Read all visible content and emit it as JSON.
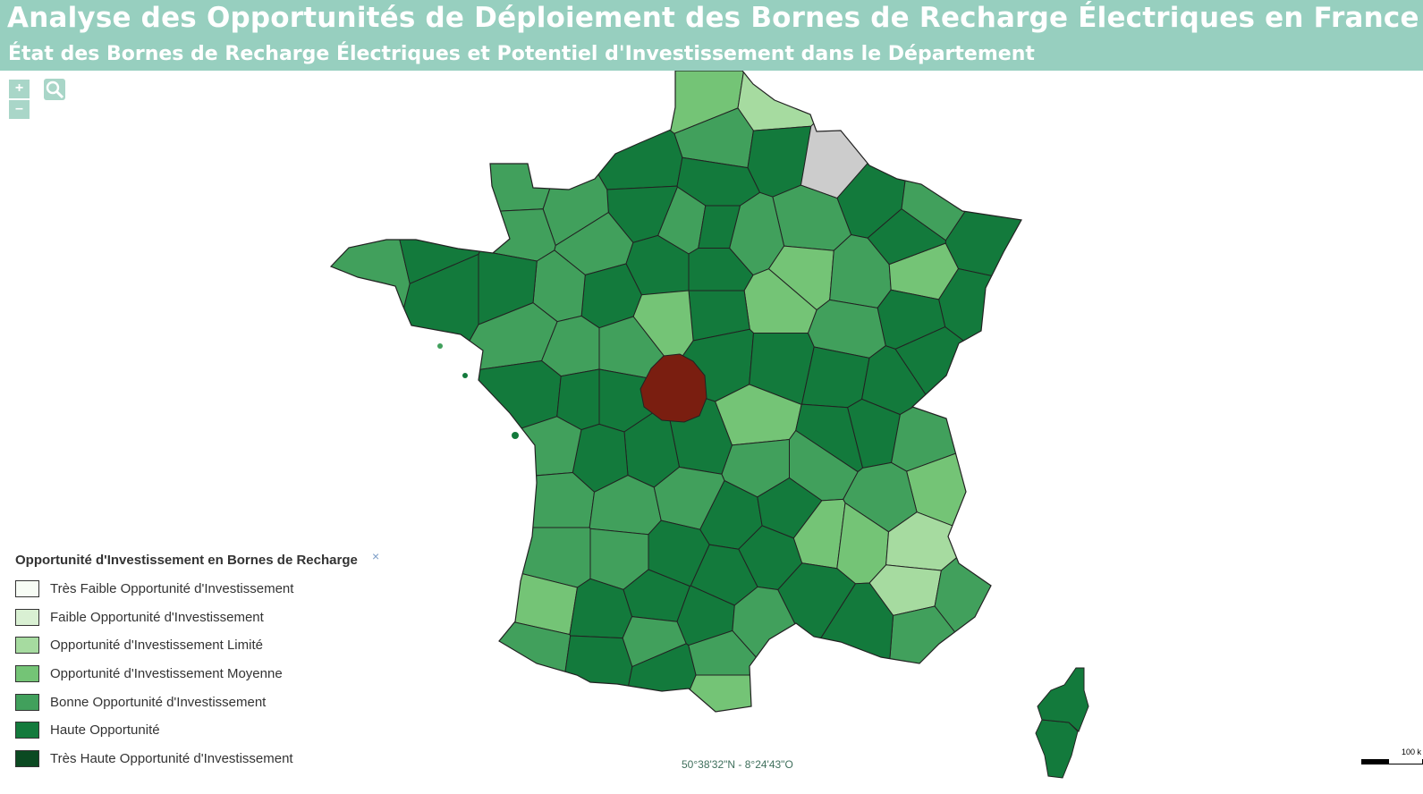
{
  "header": {
    "title": "Analyse des Opportunités de Déploiement des Bornes de Recharge Électriques en France",
    "subtitle": "État des Bornes de Recharge Électriques et Potentiel d'Investissement dans le Département"
  },
  "controls": {
    "zoom_in": "+",
    "zoom_out": "–",
    "close": "×"
  },
  "colors": {
    "header_bg": "#97cfbf",
    "class_1": "#f7fcf5",
    "class_2": "#d9f0d3",
    "class_3": "#a6dba0",
    "class_4": "#74c476",
    "class_5": "#41a05c",
    "class_6": "#137a3c",
    "class_7": "#0b4a22",
    "no_data": "#cccccc",
    "selected": "#7a1e10",
    "border": "#222222"
  },
  "legend": {
    "title": "Opportunité d'Investissement en Bornes de Recharge",
    "items": [
      {
        "label": "Très Faible Opportunité d'Investissement",
        "color": "#f7fcf5"
      },
      {
        "label": "Faible Opportunité d'Investissement",
        "color": "#d9f0d3"
      },
      {
        "label": "Opportunité d'Investissement Limité",
        "color": "#a6dba0"
      },
      {
        "label": "Opportunité d'Investissement Moyenne",
        "color": "#74c476"
      },
      {
        "label": "Bonne Opportunité d'Investissement",
        "color": "#41a05c"
      },
      {
        "label": "Haute Opportunité",
        "color": "#137a3c"
      },
      {
        "label": "Très Haute Opportunité d'Investissement",
        "color": "#0b4a22"
      }
    ]
  },
  "coordinates": "50°38'32\"N - 8°24'43\"O",
  "scale": {
    "label": "100 k"
  }
}
